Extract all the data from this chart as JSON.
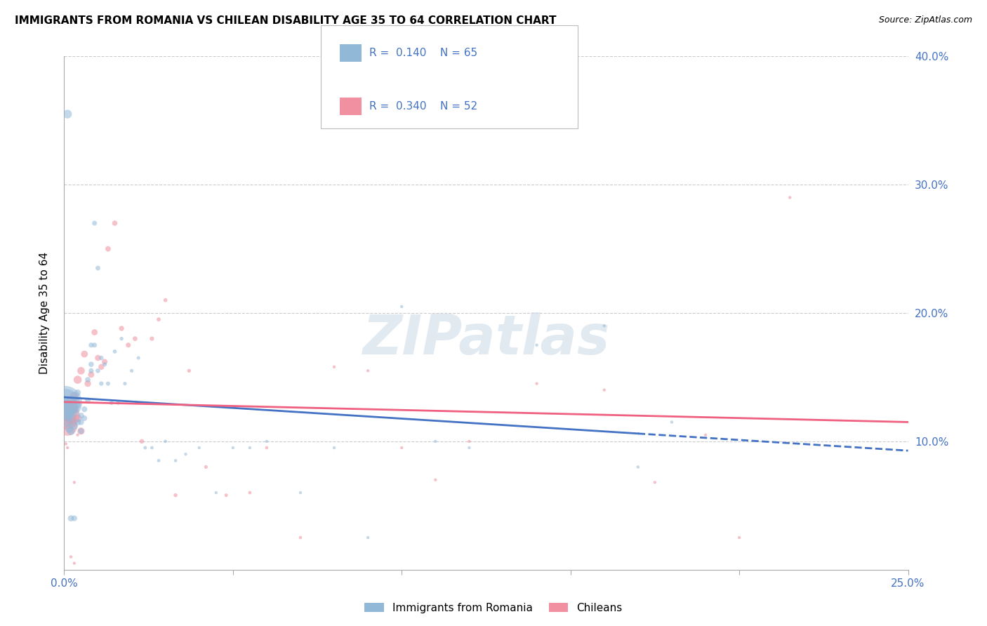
{
  "title": "IMMIGRANTS FROM ROMANIA VS CHILEAN DISABILITY AGE 35 TO 64 CORRELATION CHART",
  "source": "Source: ZipAtlas.com",
  "ylabel": "Disability Age 35 to 64",
  "xlim": [
    0.0,
    0.25
  ],
  "ylim": [
    0.0,
    0.4
  ],
  "romania_R": 0.14,
  "romania_N": 65,
  "chilean_R": 0.34,
  "chilean_N": 52,
  "romania_color": "#92b8d8",
  "chilean_color": "#f090a0",
  "romania_line_color": "#4472c4",
  "chilean_line_color": "#f06080",
  "watermark_text": "ZIPatlas",
  "romania_scatter_x": [
    0.0005,
    0.001,
    0.001,
    0.001,
    0.0015,
    0.002,
    0.002,
    0.002,
    0.003,
    0.003,
    0.003,
    0.004,
    0.004,
    0.004,
    0.005,
    0.005,
    0.005,
    0.006,
    0.006,
    0.007,
    0.007,
    0.008,
    0.008,
    0.008,
    0.009,
    0.009,
    0.01,
    0.01,
    0.011,
    0.011,
    0.012,
    0.013,
    0.014,
    0.015,
    0.016,
    0.017,
    0.018,
    0.02,
    0.022,
    0.024,
    0.026,
    0.028,
    0.03,
    0.033,
    0.036,
    0.04,
    0.045,
    0.05,
    0.055,
    0.06,
    0.07,
    0.08,
    0.09,
    0.1,
    0.11,
    0.12,
    0.14,
    0.16,
    0.17,
    0.18,
    0.0003,
    0.0005,
    0.001,
    0.002,
    0.003
  ],
  "romania_scatter_y": [
    0.13,
    0.125,
    0.115,
    0.12,
    0.11,
    0.108,
    0.118,
    0.122,
    0.112,
    0.125,
    0.13,
    0.115,
    0.128,
    0.138,
    0.12,
    0.115,
    0.108,
    0.125,
    0.118,
    0.132,
    0.148,
    0.16,
    0.155,
    0.175,
    0.27,
    0.175,
    0.235,
    0.155,
    0.165,
    0.145,
    0.16,
    0.145,
    0.13,
    0.17,
    0.13,
    0.18,
    0.145,
    0.155,
    0.165,
    0.095,
    0.095,
    0.085,
    0.1,
    0.085,
    0.09,
    0.095,
    0.06,
    0.095,
    0.095,
    0.1,
    0.06,
    0.095,
    0.025,
    0.205,
    0.1,
    0.095,
    0.175,
    0.19,
    0.08,
    0.115,
    0.13,
    0.13,
    0.355,
    0.04,
    0.04
  ],
  "chilean_scatter_x": [
    0.0005,
    0.001,
    0.001,
    0.002,
    0.002,
    0.003,
    0.003,
    0.004,
    0.004,
    0.005,
    0.005,
    0.006,
    0.007,
    0.008,
    0.009,
    0.01,
    0.011,
    0.012,
    0.013,
    0.015,
    0.017,
    0.019,
    0.021,
    0.023,
    0.026,
    0.028,
    0.03,
    0.033,
    0.037,
    0.042,
    0.048,
    0.055,
    0.06,
    0.07,
    0.08,
    0.09,
    0.1,
    0.11,
    0.12,
    0.14,
    0.16,
    0.175,
    0.19,
    0.2,
    0.215,
    0.0005,
    0.001,
    0.002,
    0.003,
    0.004,
    0.002,
    0.003
  ],
  "chilean_scatter_y": [
    0.12,
    0.112,
    0.125,
    0.118,
    0.13,
    0.125,
    0.135,
    0.148,
    0.118,
    0.155,
    0.108,
    0.168,
    0.145,
    0.152,
    0.185,
    0.165,
    0.158,
    0.162,
    0.25,
    0.27,
    0.188,
    0.175,
    0.18,
    0.1,
    0.18,
    0.195,
    0.21,
    0.058,
    0.155,
    0.08,
    0.058,
    0.06,
    0.095,
    0.025,
    0.158,
    0.155,
    0.095,
    0.07,
    0.1,
    0.145,
    0.14,
    0.068,
    0.105,
    0.025,
    0.29,
    0.098,
    0.095,
    0.115,
    0.068,
    0.105,
    0.01,
    0.005
  ],
  "romania_sizes": [
    120,
    100,
    90,
    80,
    75,
    70,
    65,
    60,
    58,
    55,
    50,
    48,
    45,
    42,
    40,
    38,
    36,
    34,
    33,
    32,
    31,
    30,
    28,
    27,
    26,
    25,
    24,
    23,
    22,
    21,
    20,
    19,
    18,
    17,
    16,
    15,
    14,
    14,
    13,
    13,
    12,
    12,
    11,
    11,
    10,
    10,
    10,
    10,
    10,
    10,
    10,
    10,
    10,
    10,
    10,
    10,
    10,
    10,
    10,
    10,
    1200,
    800,
    80,
    40,
    35
  ],
  "chilean_sizes": [
    800,
    400,
    200,
    150,
    100,
    90,
    80,
    70,
    65,
    60,
    55,
    50,
    45,
    42,
    40,
    38,
    36,
    34,
    32,
    30,
    28,
    26,
    24,
    22,
    20,
    18,
    17,
    16,
    15,
    14,
    13,
    12,
    11,
    11,
    10,
    10,
    10,
    10,
    10,
    10,
    10,
    10,
    10,
    10,
    10,
    10,
    10,
    10,
    10,
    10,
    10,
    10
  ]
}
